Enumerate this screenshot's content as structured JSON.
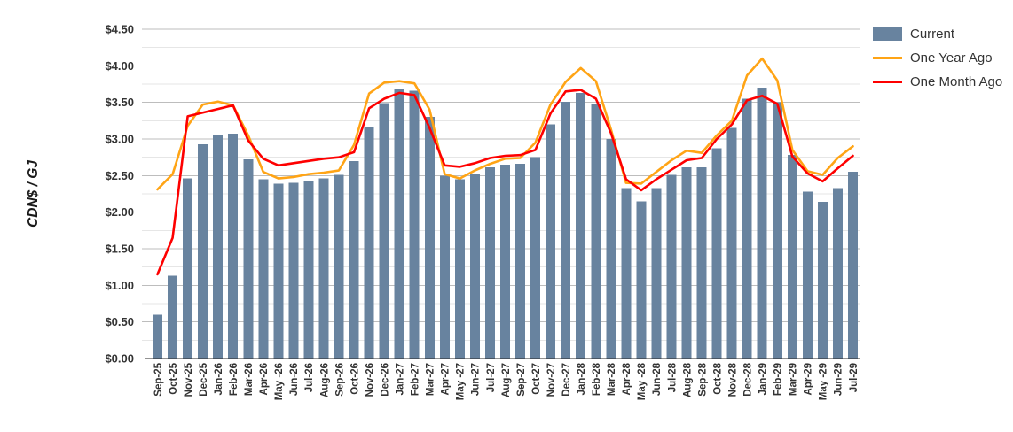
{
  "chart_data": {
    "type": "bar",
    "title": "",
    "ylabel": "CDN$ / GJ",
    "xlabel": "",
    "ylim": [
      0,
      4.5
    ],
    "y_major_step": 0.5,
    "y_minor_step": 0.25,
    "y_tick_labels": [
      "$0.00",
      "$0.50",
      "$1.00",
      "$1.50",
      "$2.00",
      "$2.50",
      "$3.00",
      "$3.50",
      "$4.00",
      "$4.50"
    ],
    "grid": "on",
    "legend_position": "right",
    "categories": [
      "Sep-25",
      "Oct-25",
      "Nov-25",
      "Dec-25",
      "Jan-26",
      "Feb-26",
      "Mar-26",
      "Apr-26",
      "May -26",
      "Jun-26",
      "Jul-26",
      "Aug-26",
      "Sep-26",
      "Oct-26",
      "Nov-26",
      "Dec-26",
      "Jan-27",
      "Feb-27",
      "Mar-27",
      "Apr-27",
      "May -27",
      "Jun-27",
      "Jul-27",
      "Aug-27",
      "Sep-27",
      "Oct-27",
      "Nov-27",
      "Dec-27",
      "Jan-28",
      "Feb-28",
      "Mar-28",
      "Apr-28",
      "May -28",
      "Jun-28",
      "Jul-28",
      "Aug-28",
      "Sep-28",
      "Oct-28",
      "Nov-28",
      "Dec-28",
      "Jan-29",
      "Feb-29",
      "Mar-29",
      "Apr-29",
      "May -29",
      "Jun-29",
      "Jul-29"
    ],
    "series": [
      {
        "name": "Current",
        "type": "bar",
        "color": "#68839F",
        "values": [
          0.6,
          1.13,
          2.46,
          2.93,
          3.05,
          3.07,
          2.72,
          2.45,
          2.39,
          2.4,
          2.43,
          2.46,
          2.51,
          2.7,
          3.17,
          3.49,
          3.68,
          3.66,
          3.3,
          2.5,
          2.45,
          2.52,
          2.61,
          2.65,
          2.66,
          2.75,
          3.2,
          3.51,
          3.63,
          3.48,
          3.0,
          2.33,
          2.15,
          2.33,
          2.51,
          2.61,
          2.61,
          2.87,
          3.15,
          3.55,
          3.7,
          3.5,
          2.78,
          2.28,
          2.14,
          2.33,
          2.55
        ]
      },
      {
        "name": "One Year Ago",
        "type": "line",
        "color": "#FFA415",
        "values": [
          2.31,
          2.52,
          3.18,
          3.47,
          3.51,
          3.46,
          3.05,
          2.55,
          2.46,
          2.48,
          2.52,
          2.54,
          2.57,
          2.92,
          3.62,
          3.77,
          3.79,
          3.76,
          3.4,
          2.52,
          2.46,
          2.57,
          2.66,
          2.73,
          2.74,
          2.95,
          3.47,
          3.78,
          3.97,
          3.79,
          3.13,
          2.4,
          2.39,
          2.55,
          2.71,
          2.84,
          2.81,
          3.05,
          3.25,
          3.87,
          4.1,
          3.8,
          2.85,
          2.56,
          2.51,
          2.74,
          2.9
        ]
      },
      {
        "name": "One Month Ago",
        "type": "line",
        "color": "#FE0000",
        "values": [
          1.15,
          1.65,
          3.31,
          3.36,
          3.41,
          3.46,
          2.98,
          2.73,
          2.64,
          2.67,
          2.7,
          2.73,
          2.75,
          2.82,
          3.42,
          3.55,
          3.63,
          3.6,
          3.15,
          2.64,
          2.62,
          2.67,
          2.74,
          2.77,
          2.78,
          2.85,
          3.35,
          3.65,
          3.67,
          3.55,
          3.08,
          2.45,
          2.3,
          2.45,
          2.58,
          2.71,
          2.74,
          3.0,
          3.2,
          3.53,
          3.59,
          3.48,
          2.76,
          2.53,
          2.42,
          2.6,
          2.77
        ]
      }
    ],
    "style": {
      "major_grid_color": "#BDBDBD",
      "minor_grid_color": "#E6E6E6",
      "axis_line_color": "#262626",
      "tick_label_color": "#333333",
      "plot_bg": "#FFFFFF"
    }
  }
}
